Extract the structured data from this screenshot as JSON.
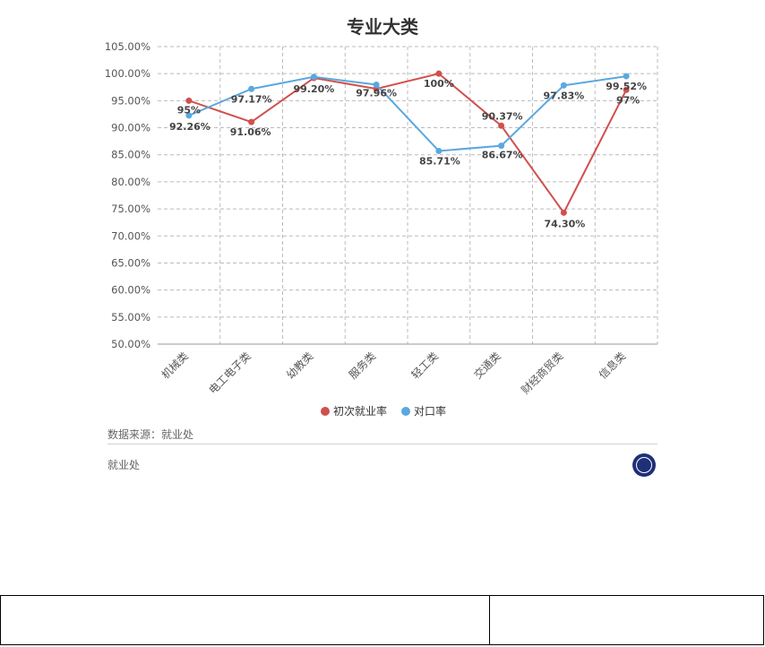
{
  "chart_data": {
    "type": "line",
    "title": "专业大类",
    "categories": [
      "机械类",
      "电工电子类",
      "幼教类",
      "服务类",
      "轻工类",
      "交通类",
      "财经商贸类",
      "信息类"
    ],
    "series": [
      {
        "name": "初次就业率",
        "color": "#d0504e",
        "values": [
          95,
          91.06,
          99.2,
          97.2,
          100,
          90.37,
          74.3,
          97
        ],
        "labels": [
          "95%",
          "91.06%",
          "99.20%",
          "",
          "100%",
          "90.37%",
          "74.30%",
          "97%"
        ]
      },
      {
        "name": "对口率",
        "color": "#5aa8e0",
        "values": [
          92.26,
          97.17,
          99.4,
          97.96,
          85.71,
          86.67,
          97.83,
          99.52
        ],
        "labels": [
          "92.26%",
          "97.17%",
          "",
          "97.96%",
          "85.71%",
          "86.67%",
          "97.83%",
          "99.52%"
        ]
      }
    ],
    "ylim": [
      50,
      105
    ],
    "yticks": [
      "50.00%",
      "55.00%",
      "60.00%",
      "65.00%",
      "70.00%",
      "75.00%",
      "80.00%",
      "85.00%",
      "90.00%",
      "95.00%",
      "100.00%",
      "105.00%"
    ],
    "grid": true,
    "legend_position": "bottom"
  },
  "footer": {
    "source": "数据来源：就业处",
    "org": "就业处",
    "logo_icon": "university-seal-icon"
  }
}
